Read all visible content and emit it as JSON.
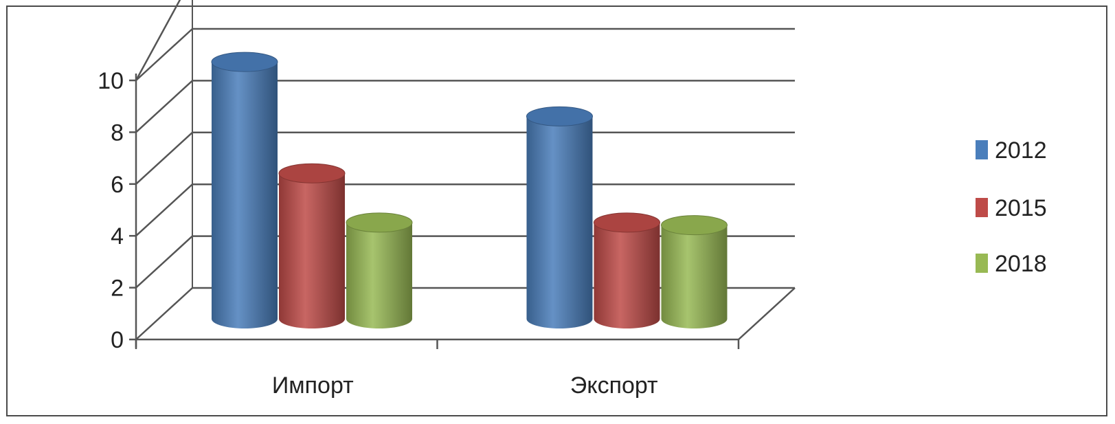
{
  "chart_data": {
    "type": "bar",
    "title": "",
    "xlabel": "",
    "ylabel": "",
    "categories": [
      "Импорт",
      "Экспорт"
    ],
    "series": [
      {
        "name": "2012",
        "values": [
          10.5,
          8.4
        ],
        "color": "#4a7ebb"
      },
      {
        "name": "2015",
        "values": [
          6.2,
          4.3
        ],
        "color": "#be4b48"
      },
      {
        "name": "2018",
        "values": [
          4.3,
          4.2
        ],
        "color": "#98b954"
      }
    ],
    "ylim": [
      0,
      10
    ],
    "yticks": [
      "0",
      "2",
      "4",
      "6",
      "8",
      "10"
    ],
    "grid": true,
    "legend": "right",
    "style": "3d-cylinder"
  }
}
